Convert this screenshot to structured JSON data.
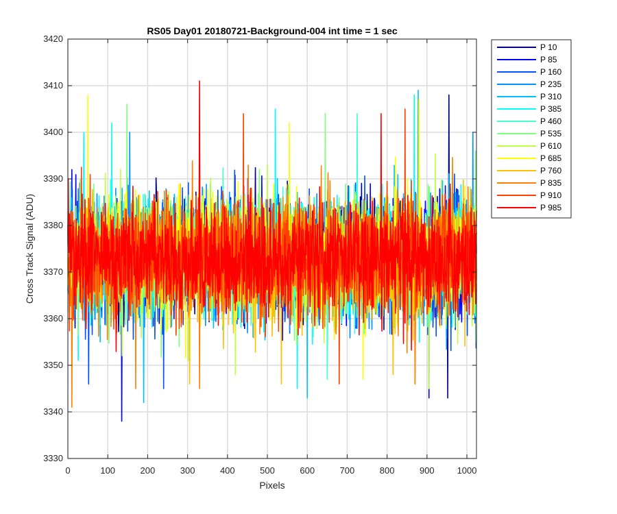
{
  "chart_data": {
    "type": "line",
    "title": "RS05 Day01 20180721-Background-004 int time = 1 sec",
    "xlabel": "Pixels",
    "ylabel": "Cross Track Signal (ADU)",
    "xlim": [
      0,
      1024
    ],
    "ylim": [
      3330,
      3420
    ],
    "xticks": [
      0,
      100,
      200,
      300,
      400,
      500,
      600,
      700,
      800,
      900,
      1000
    ],
    "yticks": [
      3330,
      3340,
      3350,
      3360,
      3370,
      3380,
      3390,
      3400,
      3410,
      3420
    ],
    "grid": true,
    "legend_position": "outside-top-right",
    "noise_center": 3373,
    "noise_sigma": 6,
    "series": [
      {
        "name": "P 10",
        "color": "#00008f",
        "peaks": [
          [
            955,
            3408
          ],
          [
            952,
            3343
          ]
        ]
      },
      {
        "name": "P 85",
        "color": "#0000ff",
        "peaks": [
          [
            10,
            3392
          ],
          [
            135,
            3338
          ],
          [
            905,
            3343
          ]
        ]
      },
      {
        "name": "P 160",
        "color": "#0050ff",
        "peaks": [
          [
            240,
            3345
          ],
          [
            52,
            3346
          ]
        ]
      },
      {
        "name": "P 235",
        "color": "#0090ff",
        "peaks": [
          [
            155,
            3400
          ],
          [
            1015,
            3400
          ]
        ]
      },
      {
        "name": "P 310",
        "color": "#00bfff",
        "peaks": [
          [
            190,
            3342
          ],
          [
            600,
            3343
          ],
          [
            878,
            3409
          ]
        ]
      },
      {
        "name": "P 385",
        "color": "#00ffff",
        "peaks": [
          [
            40,
            3400
          ],
          [
            110,
            3402
          ],
          [
            520,
            3405
          ],
          [
            868,
            3408
          ],
          [
            575,
            3345
          ]
        ]
      },
      {
        "name": "P 460",
        "color": "#40ffd0",
        "peaks": [
          [
            725,
            3404
          ],
          [
            650,
            3347
          ]
        ]
      },
      {
        "name": "P 535",
        "color": "#80ff80",
        "peaks": [
          [
            148,
            3406
          ],
          [
            645,
            3404
          ],
          [
            1022,
            3396
          ]
        ]
      },
      {
        "name": "P 610",
        "color": "#c0ff40",
        "peaks": [
          [
            905,
            3345
          ],
          [
            420,
            3348
          ]
        ]
      },
      {
        "name": "P 685",
        "color": "#ffff00",
        "peaks": [
          [
            50,
            3408
          ],
          [
            555,
            3402
          ],
          [
            880,
            3407
          ],
          [
            740,
            3347
          ]
        ]
      },
      {
        "name": "P 760",
        "color": "#ffc000",
        "peaks": [
          [
            305,
            3346
          ],
          [
            815,
            3348
          ],
          [
            535,
            3346
          ]
        ]
      },
      {
        "name": "P 835",
        "color": "#ff8000",
        "peaks": [
          [
            10,
            3341
          ],
          [
            330,
            3345
          ],
          [
            870,
            3346
          ],
          [
            170,
            3345
          ]
        ]
      },
      {
        "name": "P 910",
        "color": "#ff4000",
        "peaks": [
          [
            440,
            3404
          ],
          [
            845,
            3405
          ],
          [
            680,
            3346
          ]
        ]
      },
      {
        "name": "P 985",
        "color": "#ff0000",
        "peaks": [
          [
            330,
            3411
          ],
          [
            785,
            3404
          ],
          [
            1,
            3390
          ]
        ]
      }
    ]
  }
}
